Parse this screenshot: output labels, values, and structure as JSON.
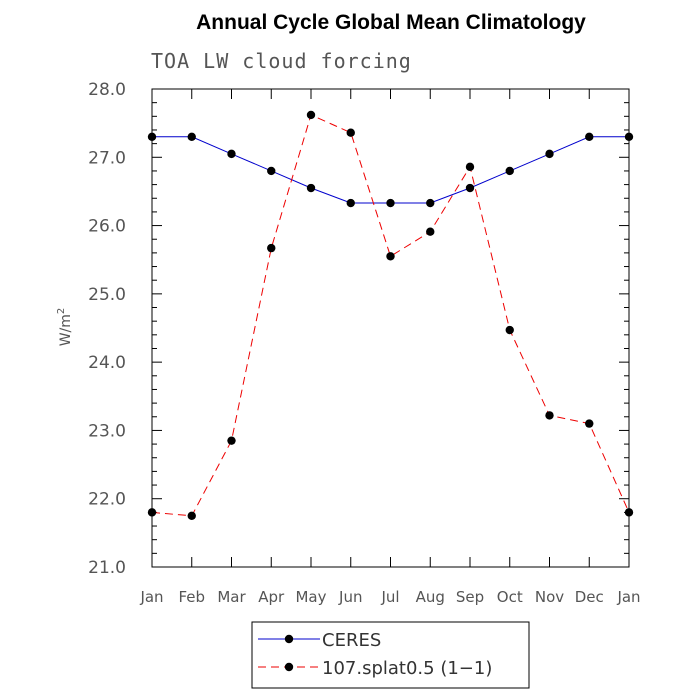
{
  "chart_data": {
    "type": "line",
    "title": "Annual Cycle Global Mean Climatology",
    "subtitle": "TOA LW cloud forcing",
    "ylabel": "W/m",
    "ylabel_sup": "2",
    "categories": [
      "Jan",
      "Feb",
      "Mar",
      "Apr",
      "May",
      "Jun",
      "Jul",
      "Aug",
      "Sep",
      "Oct",
      "Nov",
      "Dec",
      "Jan"
    ],
    "ylim": [
      21.0,
      28.0
    ],
    "yticks": [
      "21.0",
      "22.0",
      "23.0",
      "24.0",
      "25.0",
      "26.0",
      "27.0",
      "28.0"
    ],
    "legend_position": "bottom",
    "series": [
      {
        "name": "CERES",
        "color": "#0000cc",
        "dash": "solid",
        "values": [
          27.3,
          27.3,
          27.05,
          26.8,
          26.55,
          26.33,
          26.33,
          26.33,
          26.55,
          26.8,
          27.05,
          27.3,
          27.3
        ]
      },
      {
        "name": "107.splat0.5 (1−1)",
        "color": "#ee0000",
        "dash": "dashed",
        "values": [
          21.8,
          21.75,
          22.85,
          25.67,
          27.62,
          27.36,
          25.55,
          25.91,
          26.86,
          24.47,
          23.22,
          23.1,
          21.8
        ]
      }
    ]
  }
}
